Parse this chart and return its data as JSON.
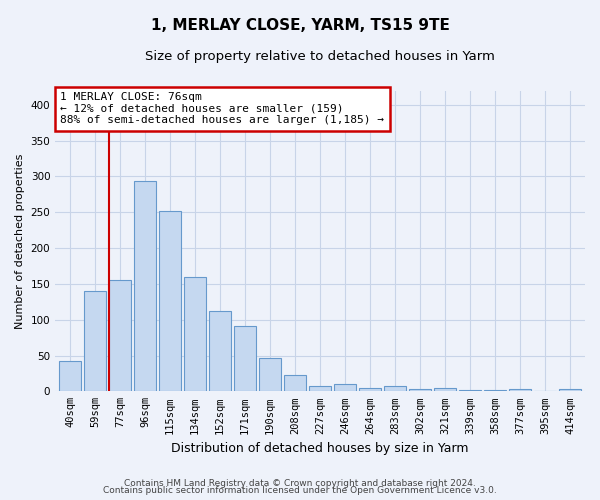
{
  "title": "1, MERLAY CLOSE, YARM, TS15 9TE",
  "subtitle": "Size of property relative to detached houses in Yarm",
  "xlabel": "Distribution of detached houses by size in Yarm",
  "ylabel": "Number of detached properties",
  "footer1": "Contains HM Land Registry data © Crown copyright and database right 2024.",
  "footer2": "Contains public sector information licensed under the Open Government Licence v3.0.",
  "categories": [
    "40sqm",
    "59sqm",
    "77sqm",
    "96sqm",
    "115sqm",
    "134sqm",
    "152sqm",
    "171sqm",
    "190sqm",
    "208sqm",
    "227sqm",
    "246sqm",
    "264sqm",
    "283sqm",
    "302sqm",
    "321sqm",
    "339sqm",
    "358sqm",
    "377sqm",
    "395sqm",
    "414sqm"
  ],
  "values": [
    42,
    140,
    155,
    294,
    252,
    160,
    112,
    91,
    46,
    23,
    8,
    10,
    5,
    7,
    3,
    4,
    2,
    2,
    3,
    0,
    3
  ],
  "bar_color": "#c5d8f0",
  "bar_edge_color": "#6699cc",
  "vline_color": "#cc0000",
  "vline_bin": 2,
  "annotation_line1": "1 MERLAY CLOSE: 76sqm",
  "annotation_line2": "← 12% of detached houses are smaller (159)",
  "annotation_line3": "88% of semi-detached houses are larger (1,185) →",
  "annotation_box_facecolor": "#ffffff",
  "annotation_box_edgecolor": "#cc0000",
  "ylim": [
    0,
    420
  ],
  "yticks": [
    0,
    50,
    100,
    150,
    200,
    250,
    300,
    350,
    400
  ],
  "grid_color": "#c8d4e8",
  "background_color": "#eef2fa",
  "title_fontsize": 11,
  "subtitle_fontsize": 9.5,
  "ylabel_fontsize": 8,
  "xlabel_fontsize": 9,
  "tick_fontsize": 7.5
}
